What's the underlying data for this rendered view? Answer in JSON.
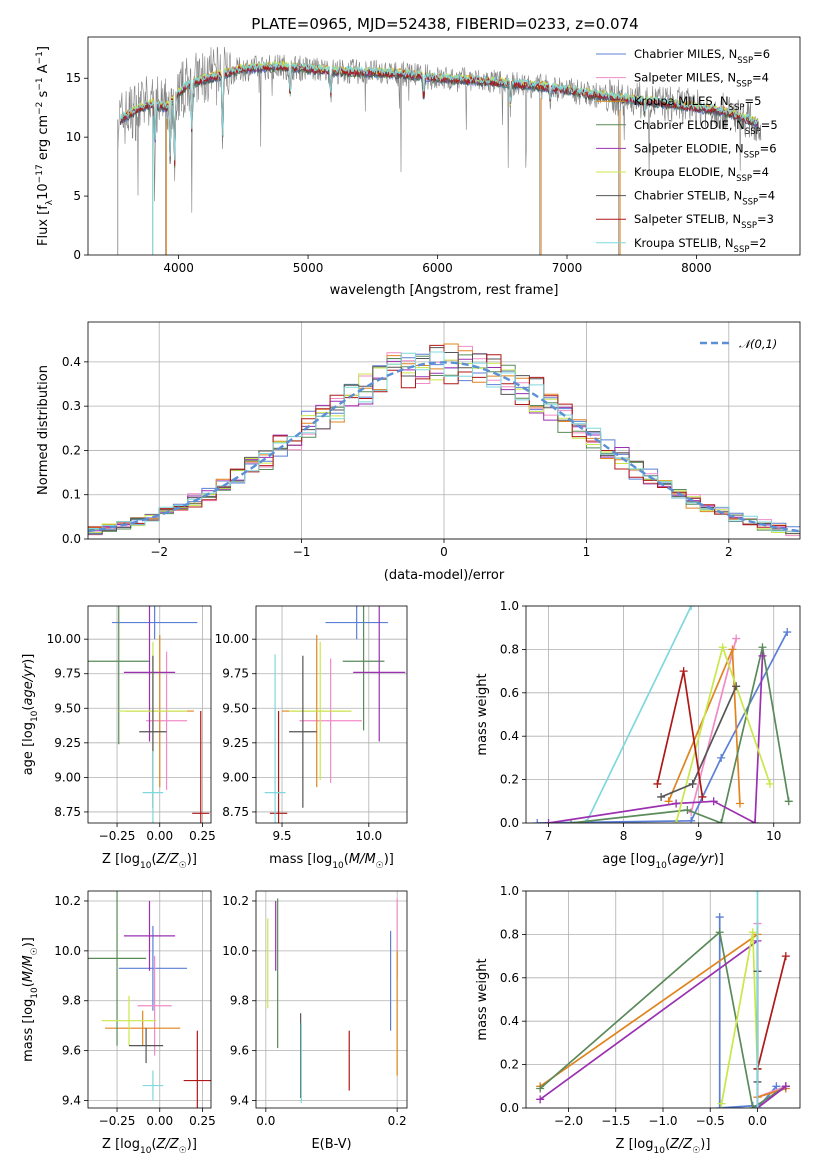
{
  "figure": {
    "title": "PLATE=0965, MJD=52438, FIBERID=0233, z=0.074"
  },
  "colors": {
    "Chabrier MILES": "#5b7fd6",
    "Salpeter MILES": "#f08bc6",
    "Kroupa MILES": "#e0841e",
    "Chabrier ELODIE": "#5a8a5a",
    "Salpeter ELODIE": "#9b30b0",
    "Kroupa ELODIE": "#c8e84a",
    "Chabrier STELIB": "#555555",
    "Salpeter STELIB": "#b01818",
    "Kroupa STELIB": "#7fd8dc",
    "data": "#808080"
  },
  "chart_data": [
    {
      "id": "spectrum",
      "type": "line",
      "xlabel": "wavelength [Angstrom, rest frame]",
      "ylabel": "Flux [f_λ 10^-17 erg cm^-2 s^-1 A^-1]",
      "xlim": [
        3300,
        8800
      ],
      "ylim": [
        0,
        18.5
      ],
      "xticks": [
        4000,
        5000,
        6000,
        7000,
        8000
      ],
      "yticks": [
        0,
        5,
        10,
        15
      ],
      "legend_position": "right",
      "legend": [
        {
          "label": "Chabrier MILES, N",
          "sub": "SSP",
          "n": "=6"
        },
        {
          "label": "Salpeter MILES, N",
          "sub": "SSP",
          "n": "=4"
        },
        {
          "label": "Kroupa MILES, N",
          "sub": "SSP",
          "n": "=5"
        },
        {
          "label": "Chabrier ELODIE, N",
          "sub": "SSP",
          "n": "=5"
        },
        {
          "label": "Salpeter ELODIE, N",
          "sub": "SSP",
          "n": "=6"
        },
        {
          "label": "Kroupa ELODIE, N",
          "sub": "SSP",
          "n": "=4"
        },
        {
          "label": "Chabrier STELIB, N",
          "sub": "SSP",
          "n": "=4"
        },
        {
          "label": "Salpeter STELIB, N",
          "sub": "SSP",
          "n": "=3"
        },
        {
          "label": "Kroupa STELIB, N",
          "sub": "SSP",
          "n": "=2"
        }
      ],
      "continuum": [
        [
          3550,
          11.5
        ],
        [
          3700,
          12.5
        ],
        [
          3800,
          12.8
        ],
        [
          3900,
          12.5
        ],
        [
          4000,
          13.8
        ],
        [
          4100,
          14.6
        ],
        [
          4300,
          15.2
        ],
        [
          4500,
          15.8
        ],
        [
          4800,
          16.0
        ],
        [
          5000,
          15.8
        ],
        [
          5200,
          15.6
        ],
        [
          5500,
          15.5
        ],
        [
          5800,
          15.3
        ],
        [
          6000,
          15.0
        ],
        [
          6300,
          14.8
        ],
        [
          6500,
          14.6
        ],
        [
          6800,
          14.3
        ],
        [
          7000,
          14.0
        ],
        [
          7200,
          13.6
        ],
        [
          7500,
          13.2
        ],
        [
          7800,
          12.8
        ],
        [
          8000,
          12.5
        ],
        [
          8200,
          12.2
        ],
        [
          8400,
          11.5
        ],
        [
          8500,
          11.0
        ]
      ],
      "absorption_lines": [
        [
          3820,
          9.5
        ],
        [
          3934,
          7.5
        ],
        [
          3969,
          7.0
        ],
        [
          4102,
          10.0
        ],
        [
          4340,
          9.0
        ],
        [
          4861,
          13.0
        ],
        [
          5175,
          13.5
        ],
        [
          5893,
          13.0
        ],
        [
          6563,
          12.5
        ],
        [
          6870,
          13.0
        ],
        [
          7600,
          12.0
        ]
      ]
    },
    {
      "id": "residuals",
      "type": "line",
      "xlabel": "(data-model)/error",
      "ylabel": "Normed distribution",
      "xlim": [
        -2.5,
        2.5
      ],
      "ylim": [
        0,
        0.49
      ],
      "xticks": [
        -2,
        -1,
        0,
        1,
        2
      ],
      "yticks": [
        0.0,
        0.1,
        0.2,
        0.3,
        0.4
      ],
      "grid": true,
      "legend": "𝒩(0,1)",
      "legend_position": "top-right"
    },
    {
      "id": "age_vs_Z",
      "type": "scatter",
      "xlabel": "Z [log₁₀(Z/Z☉)]",
      "ylabel": "age  [log₁₀(age/yr)]",
      "xlim": [
        -0.42,
        0.3
      ],
      "ylim": [
        8.67,
        10.24
      ],
      "xticks": [
        -0.25,
        0.0,
        0.25
      ],
      "yticks": [
        8.75,
        9.0,
        9.25,
        9.5,
        9.75,
        10.0
      ],
      "grid": true,
      "points": [
        {
          "s": "Chabrier MILES",
          "x": -0.03,
          "y": 10.12,
          "xe": 0.25,
          "ye": 0.12
        },
        {
          "s": "Salpeter MILES",
          "x": 0.04,
          "y": 9.41,
          "xe": 0.12,
          "ye": 0.5
        },
        {
          "s": "Kroupa MILES",
          "x": 0.0,
          "y": 9.48,
          "xe": 0.2,
          "ye": 0.55
        },
        {
          "s": "Chabrier ELODIE",
          "x": -0.24,
          "y": 9.84,
          "xe": 0.18,
          "ye": 0.6
        },
        {
          "s": "Salpeter ELODIE",
          "x": -0.06,
          "y": 9.76,
          "xe": 0.15,
          "ye": 0.5
        },
        {
          "s": "Kroupa ELODIE",
          "x": -0.04,
          "y": 9.48,
          "xe": 0.2,
          "ye": 0.5
        },
        {
          "s": "Chabrier STELIB",
          "x": -0.04,
          "y": 9.33,
          "xe": 0.08,
          "ye": 0.55
        },
        {
          "s": "Salpeter STELIB",
          "x": 0.24,
          "y": 8.74,
          "xe": 0.05,
          "ye": 0.74
        },
        {
          "s": "Kroupa STELIB",
          "x": -0.04,
          "y": 8.89,
          "xe": 0.06,
          "ye": 0.3
        }
      ]
    },
    {
      "id": "age_vs_mass",
      "type": "scatter",
      "xlabel": "mass [log₁₀(M/M☉)]",
      "xlim": [
        9.35,
        10.22
      ],
      "ylim": [
        8.67,
        10.24
      ],
      "xticks": [
        9.5,
        10.0
      ],
      "yticks": [
        8.75,
        9.0,
        9.25,
        9.5,
        9.75,
        10.0
      ],
      "grid": true,
      "points": [
        {
          "s": "Chabrier MILES",
          "x": 9.93,
          "y": 10.12,
          "xe": 0.18,
          "ye": 0.12
        },
        {
          "s": "Salpeter MILES",
          "x": 9.78,
          "y": 9.41,
          "xe": 0.18,
          "ye": 0.45
        },
        {
          "s": "Kroupa MILES",
          "x": 9.7,
          "y": 9.48,
          "xe": 0.2,
          "ye": 0.55
        },
        {
          "s": "Chabrier ELODIE",
          "x": 9.97,
          "y": 9.84,
          "xe": 0.12,
          "ye": 0.5
        },
        {
          "s": "Salpeter ELODIE",
          "x": 10.06,
          "y": 9.76,
          "xe": 0.15,
          "ye": 0.5
        },
        {
          "s": "Kroupa ELODIE",
          "x": 9.72,
          "y": 9.48,
          "xe": 0.18,
          "ye": 0.5
        },
        {
          "s": "Chabrier STELIB",
          "x": 9.62,
          "y": 9.33,
          "xe": 0.08,
          "ye": 0.55
        },
        {
          "s": "Salpeter STELIB",
          "x": 9.48,
          "y": 8.74,
          "xe": 0.05,
          "ye": 0.74
        },
        {
          "s": "Kroupa STELIB",
          "x": 9.46,
          "y": 8.89,
          "xe": 0.06,
          "ye": 1.0
        }
      ]
    },
    {
      "id": "weight_vs_age",
      "type": "line",
      "xlabel": "age  [log₁₀(age/yr)]",
      "ylabel": "mass weight",
      "xlim": [
        6.7,
        10.35
      ],
      "ylim": [
        0,
        1.0
      ],
      "xticks": [
        7,
        8,
        9,
        10
      ],
      "yticks": [
        0.0,
        0.2,
        0.4,
        0.6,
        0.8,
        1.0
      ],
      "grid": true,
      "series": [
        {
          "s": "Kroupa STELIB",
          "x": [
            7.5,
            8.9
          ],
          "y": [
            0.0,
            1.0
          ]
        },
        {
          "s": "Chabrier MILES",
          "x": [
            6.85,
            8.9,
            9.3,
            10.18
          ],
          "y": [
            0.0,
            0.01,
            0.3,
            0.88
          ]
        },
        {
          "s": "Salpeter MILES",
          "x": [
            8.9,
            9.5
          ],
          "y": [
            0.05,
            0.85
          ]
        },
        {
          "s": "Kroupa MILES",
          "x": [
            8.6,
            9.45,
            9.55
          ],
          "y": [
            0.1,
            0.8,
            0.09
          ]
        },
        {
          "s": "Chabrier ELODIE",
          "x": [
            7.3,
            8.85,
            9.3,
            9.85,
            10.2
          ],
          "y": [
            0.0,
            0.06,
            0.0,
            0.81,
            0.1
          ]
        },
        {
          "s": "Salpeter ELODIE",
          "x": [
            7.0,
            8.7,
            9.2,
            9.75,
            9.85
          ],
          "y": [
            0.0,
            0.09,
            0.1,
            0.0,
            0.77
          ]
        },
        {
          "s": "Kroupa ELODIE",
          "x": [
            8.7,
            9.32,
            9.95
          ],
          "y": [
            0.0,
            0.81,
            0.18
          ]
        },
        {
          "s": "Chabrier STELIB",
          "x": [
            8.5,
            8.92,
            9.5
          ],
          "y": [
            0.12,
            0.18,
            0.63
          ]
        },
        {
          "s": "Salpeter STELIB",
          "x": [
            8.45,
            8.8,
            9.05
          ],
          "y": [
            0.18,
            0.7,
            0.12
          ]
        }
      ]
    },
    {
      "id": "mass_vs_Z",
      "type": "scatter",
      "xlabel": "Z [log₁₀(Z/Z☉)]",
      "ylabel": "mass [log₁₀(M/M☉)]",
      "xlim": [
        -0.42,
        0.3
      ],
      "ylim": [
        9.37,
        10.24
      ],
      "xticks": [
        -0.25,
        0.0,
        0.25
      ],
      "yticks": [
        9.4,
        9.6,
        9.8,
        10.0,
        10.2
      ],
      "grid": true,
      "points": [
        {
          "s": "Chabrier MILES",
          "x": -0.04,
          "y": 9.93,
          "xe": 0.2,
          "ye": 0.17
        },
        {
          "s": "Salpeter MILES",
          "x": -0.03,
          "y": 9.78,
          "xe": 0.1,
          "ye": 0.2
        },
        {
          "s": "Kroupa MILES",
          "x": -0.1,
          "y": 9.69,
          "xe": 0.22,
          "ye": 0.07
        },
        {
          "s": "Chabrier ELODIE",
          "x": -0.25,
          "y": 9.97,
          "xe": 0.17,
          "ye": 0.35
        },
        {
          "s": "Salpeter ELODIE",
          "x": -0.06,
          "y": 10.06,
          "xe": 0.15,
          "ye": 0.14
        },
        {
          "s": "Kroupa ELODIE",
          "x": -0.18,
          "y": 9.72,
          "xe": 0.16,
          "ye": 0.1
        },
        {
          "s": "Chabrier STELIB",
          "x": -0.08,
          "y": 9.62,
          "xe": 0.1,
          "ye": 0.07
        },
        {
          "s": "Salpeter STELIB",
          "x": 0.22,
          "y": 9.48,
          "xe": 0.08,
          "ye": 0.2
        },
        {
          "s": "Kroupa STELIB",
          "x": -0.04,
          "y": 9.46,
          "xe": 0.06,
          "ye": 0.06
        }
      ]
    },
    {
      "id": "mass_vs_EBV",
      "type": "scatter",
      "xlabel": "E(B-V)",
      "xlim": [
        -0.015,
        0.215
      ],
      "ylim": [
        9.37,
        10.24
      ],
      "xticks": [
        0.0,
        0.2
      ],
      "yticks": [
        9.4,
        9.6,
        9.8,
        10.0,
        10.2
      ],
      "grid": true,
      "points": [
        {
          "s": "Chabrier MILES",
          "x": 0.19,
          "y": 9.88,
          "ye": 0.2
        },
        {
          "s": "Salpeter MILES",
          "x": 0.2,
          "y": 10.05,
          "ye": 0.16
        },
        {
          "s": "Kroupa MILES",
          "x": 0.2,
          "y": 9.75,
          "ye": 0.25
        },
        {
          "s": "Chabrier ELODIE",
          "x": 0.018,
          "y": 9.91,
          "ye": 0.3
        },
        {
          "s": "Salpeter ELODIE",
          "x": 0.015,
          "y": 10.06,
          "ye": 0.14
        },
        {
          "s": "Kroupa ELODIE",
          "x": 0.003,
          "y": 9.95,
          "ye": 0.18
        },
        {
          "s": "Chabrier STELIB",
          "x": 0.053,
          "y": 9.58,
          "ye": 0.17
        },
        {
          "s": "Salpeter STELIB",
          "x": 0.127,
          "y": 9.56,
          "ye": 0.12
        },
        {
          "s": "Kroupa STELIB",
          "x": 0.054,
          "y": 9.55,
          "ye": 0.16
        }
      ]
    },
    {
      "id": "weight_vs_Z",
      "type": "line",
      "xlabel": "Z [log₁₀(Z/Z☉)]",
      "ylabel": "mass weight",
      "xlim": [
        -2.45,
        0.45
      ],
      "ylim": [
        0,
        1.0
      ],
      "xticks": [
        -2.0,
        -1.5,
        -1.0,
        -0.5,
        0.0
      ],
      "yticks": [
        0.0,
        0.2,
        0.4,
        0.6,
        0.8,
        1.0
      ],
      "grid": true,
      "series": [
        {
          "s": "Chabrier MILES",
          "x": [
            -0.4,
            -0.4,
            -0.05,
            0.0,
            0.2
          ],
          "y": [
            0.88,
            0.0,
            0.01,
            0.0,
            0.1
          ]
        },
        {
          "s": "Salpeter MILES",
          "x": [
            0.0,
            0.0,
            0.3
          ],
          "y": [
            0.85,
            0.05,
            0.1
          ]
        },
        {
          "s": "Kroupa MILES",
          "x": [
            -2.3,
            0.0,
            0.0,
            0.3
          ],
          "y": [
            0.1,
            0.8,
            0.05,
            0.09
          ]
        },
        {
          "s": "Chabrier ELODIE",
          "x": [
            -2.3,
            -0.4,
            -0.05,
            0.3
          ],
          "y": [
            0.09,
            0.81,
            0.0,
            0.1
          ]
        },
        {
          "s": "Salpeter ELODIE",
          "x": [
            -2.3,
            0.0,
            0.0,
            0.3
          ],
          "y": [
            0.04,
            0.77,
            0.0,
            0.1
          ]
        },
        {
          "s": "Kroupa ELODIE",
          "x": [
            -0.38,
            -0.05,
            0.0
          ],
          "y": [
            0.02,
            0.81,
            0.18
          ]
        },
        {
          "s": "Chabrier STELIB",
          "x": [
            0.0,
            0.0,
            0.0
          ],
          "y": [
            0.12,
            0.63,
            0.18
          ]
        },
        {
          "s": "Salpeter STELIB",
          "x": [
            0.0,
            0.3
          ],
          "y": [
            0.18,
            0.7
          ]
        },
        {
          "s": "Kroupa STELIB",
          "x": [
            0.0,
            0.0
          ],
          "y": [
            0.0,
            1.0
          ]
        }
      ]
    }
  ]
}
